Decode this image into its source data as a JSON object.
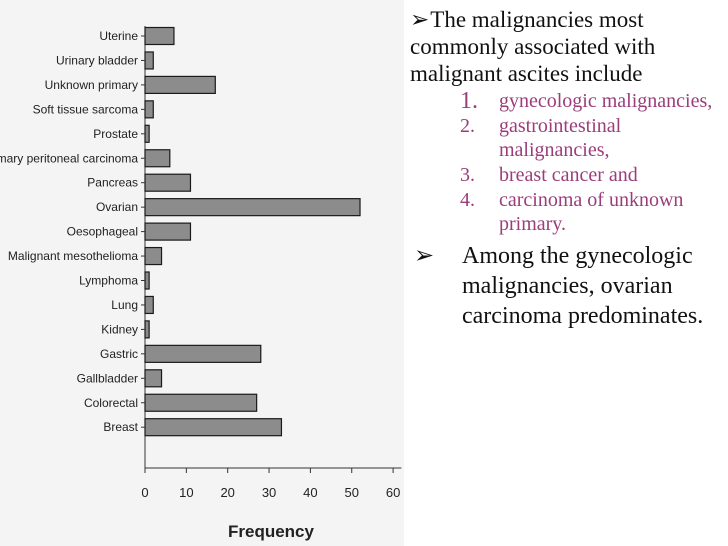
{
  "chart_data": {
    "type": "bar",
    "orientation": "horizontal",
    "categories": [
      "Uterine",
      "Urinary bladder",
      "Unknown primary",
      "Soft tissue sarcoma",
      "Prostate",
      "Primary peritoneal carcinoma",
      "Pancreas",
      "Ovarian",
      "Oesophageal",
      "Malignant mesothelioma",
      "Lymphoma",
      "Lung",
      "Kidney",
      "Gastric",
      "Gallbladder",
      "Colorectal",
      "Breast"
    ],
    "values": [
      7,
      2,
      17,
      2,
      1,
      6,
      11,
      52,
      11,
      4,
      1,
      2,
      1,
      28,
      4,
      27,
      33
    ],
    "xlabel": "Frequency",
    "ylabel": "",
    "xlim": [
      0,
      62
    ],
    "xticks": [
      "0",
      "10",
      "20",
      "30",
      "40",
      "50",
      "60"
    ],
    "bar_color": "#8c8c8c",
    "bar_edge": "#1a1a1a"
  },
  "text": {
    "intro_arrow": "➢",
    "intro": "The malignancies most commonly associated with malignant ascites include",
    "items": [
      {
        "num": "1.",
        "label": " gynecologic malignancies,"
      },
      {
        "num": "2.",
        "label": " gastrointestinal malignancies,"
      },
      {
        "num": "3.",
        "label": "breast cancer and"
      },
      {
        "num": "4.",
        "label": "carcinoma of unknown primary."
      }
    ],
    "bullet2_arrow": "➢",
    "bullet2": "Among the gynecologic malignancies, ovarian carcinoma predominates."
  },
  "colors": {
    "list_text": "#9b3d7a",
    "body_text": "#111111"
  }
}
